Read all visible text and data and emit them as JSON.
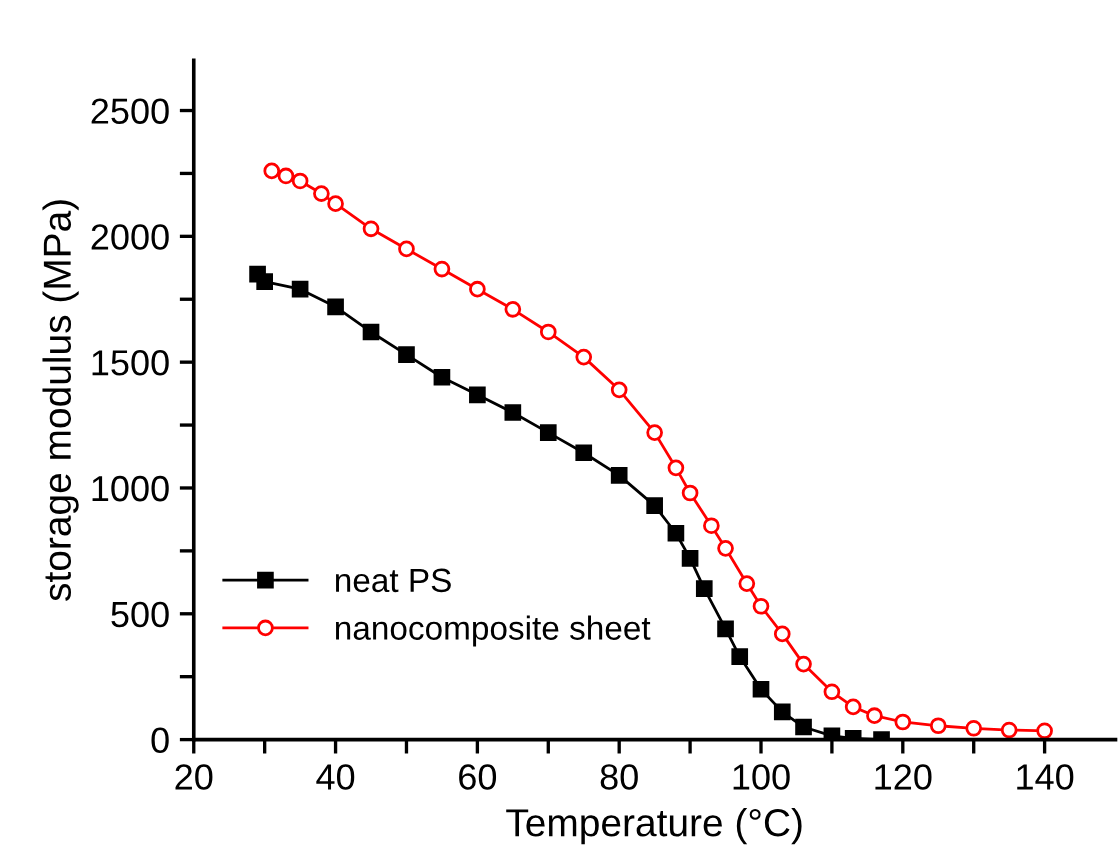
{
  "chart_data": {
    "type": "line",
    "xlabel": "Temperature (°C)",
    "ylabel": "storage modulus (MPa)",
    "xlim": [
      20,
      150
    ],
    "xticks": [
      20,
      {
        "value": 30,
        "label": null
      },
      40,
      {
        "value": 50,
        "label": null
      },
      60,
      {
        "value": 70,
        "label": null
      },
      80,
      {
        "value": 90,
        "label": null
      },
      100,
      {
        "value": 110,
        "label": null
      },
      120,
      {
        "value": 130,
        "label": null
      },
      140
    ],
    "ylim": [
      0,
      2700
    ],
    "yticks": [
      0,
      {
        "value": 250,
        "label": null
      },
      500,
      {
        "value": 750,
        "label": null
      },
      1000,
      {
        "value": 1250,
        "label": null
      },
      1500,
      {
        "value": 1750,
        "label": null
      },
      2000,
      {
        "value": 2250,
        "label": null
      },
      2500
    ],
    "grid": false,
    "legend": "left",
    "series": [
      {
        "name": "neat PS",
        "color": "#000000",
        "marker": "square",
        "x": [
          29,
          30,
          35,
          40,
          45,
          50,
          55,
          60,
          65,
          70,
          75,
          80,
          85,
          88,
          90,
          92,
          95,
          97,
          100,
          103,
          106,
          110,
          113,
          117
        ],
        "values": [
          1850,
          1820,
          1790,
          1720,
          1620,
          1530,
          1440,
          1370,
          1300,
          1220,
          1140,
          1050,
          930,
          820,
          720,
          600,
          440,
          330,
          200,
          110,
          50,
          15,
          5,
          0
        ]
      },
      {
        "name": "nanocomposite sheet",
        "color": "#ff0000",
        "marker": "circle",
        "x": [
          31,
          33,
          35,
          38,
          40,
          45,
          50,
          55,
          60,
          65,
          70,
          75,
          80,
          85,
          88,
          90,
          93,
          95,
          98,
          100,
          103,
          106,
          110,
          113,
          116,
          120,
          125,
          130,
          135,
          140
        ],
        "values": [
          2260,
          2240,
          2220,
          2170,
          2130,
          2030,
          1950,
          1870,
          1790,
          1710,
          1620,
          1520,
          1390,
          1220,
          1080,
          980,
          850,
          760,
          620,
          530,
          420,
          300,
          190,
          130,
          95,
          70,
          55,
          45,
          38,
          35
        ]
      }
    ]
  }
}
